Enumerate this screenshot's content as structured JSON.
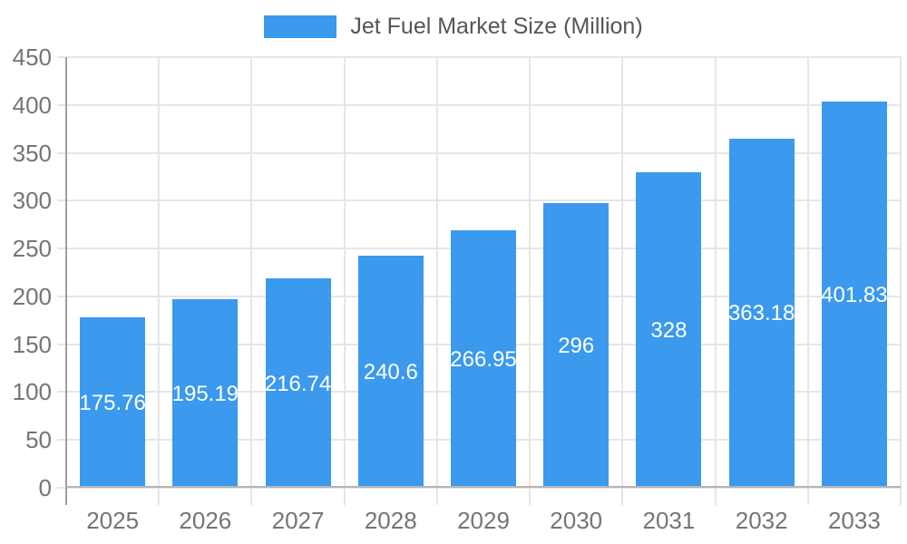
{
  "chart_data": {
    "type": "bar",
    "title": "Jet Fuel Market Size (Million)",
    "legend": {
      "label": "Jet Fuel Market Size (Million)",
      "position": "top"
    },
    "categories": [
      "2025",
      "2026",
      "2027",
      "2028",
      "2029",
      "2030",
      "2031",
      "2032",
      "2033"
    ],
    "values": [
      175.76,
      195.19,
      216.74,
      240.6,
      266.95,
      296,
      328,
      363.18,
      401.83
    ],
    "value_labels": [
      "175.76",
      "195.19",
      "216.74",
      "240.6",
      "266.95",
      "296",
      "328",
      "363.18",
      "401.83"
    ],
    "xlabel": "",
    "ylabel": "",
    "ylim": [
      0,
      450
    ],
    "yticks": [
      0,
      50,
      100,
      150,
      200,
      250,
      300,
      350,
      400,
      450
    ],
    "grid": true,
    "value_label_position": "center-of-bar",
    "colors": {
      "bar": "#3B99EE",
      "grid": "#E6E6E6",
      "y_axis": "#9E9E9E",
      "x_baseline": "#B5B5B5",
      "tick_label": "#757575",
      "legend_text": "#55565A",
      "value_label": "#FFFFFF",
      "background": "#FFFFFF"
    }
  }
}
